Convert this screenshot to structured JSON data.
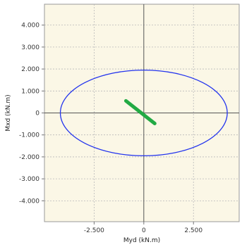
{
  "chart_data": {
    "type": "scatter",
    "xlabel": "Myd  (kN.m)",
    "ylabel": "Mxd  (kN.m)",
    "xlim": [
      -5000,
      4800
    ],
    "ylim": [
      -4950,
      4950
    ],
    "x_ticks": [
      {
        "value": -2500,
        "label": "-2.500"
      },
      {
        "value": 0,
        "label": "0"
      },
      {
        "value": 2500,
        "label": "2.500"
      }
    ],
    "y_ticks": [
      {
        "value": 4000,
        "label": "4.000"
      },
      {
        "value": 3000,
        "label": "3.000"
      },
      {
        "value": 2000,
        "label": "2.000"
      },
      {
        "value": 1000,
        "label": "1.000"
      },
      {
        "value": 0,
        "label": "0"
      },
      {
        "value": -1000,
        "label": "-1.000"
      },
      {
        "value": -2000,
        "label": "-2.000"
      },
      {
        "value": -3000,
        "label": "-3.000"
      },
      {
        "value": -4000,
        "label": "-4.000"
      }
    ],
    "grid": true,
    "background_color": "#fbf7e6",
    "series": [
      {
        "kind": "envelope-ellipse",
        "color": "#2233ee",
        "center": [
          0,
          0
        ],
        "radius_x": 4200,
        "radius_y": 1950
      },
      {
        "kind": "segment",
        "color": "#22aa44",
        "points": [
          [
            -900,
            550
          ],
          [
            550,
            -480
          ]
        ]
      }
    ]
  }
}
